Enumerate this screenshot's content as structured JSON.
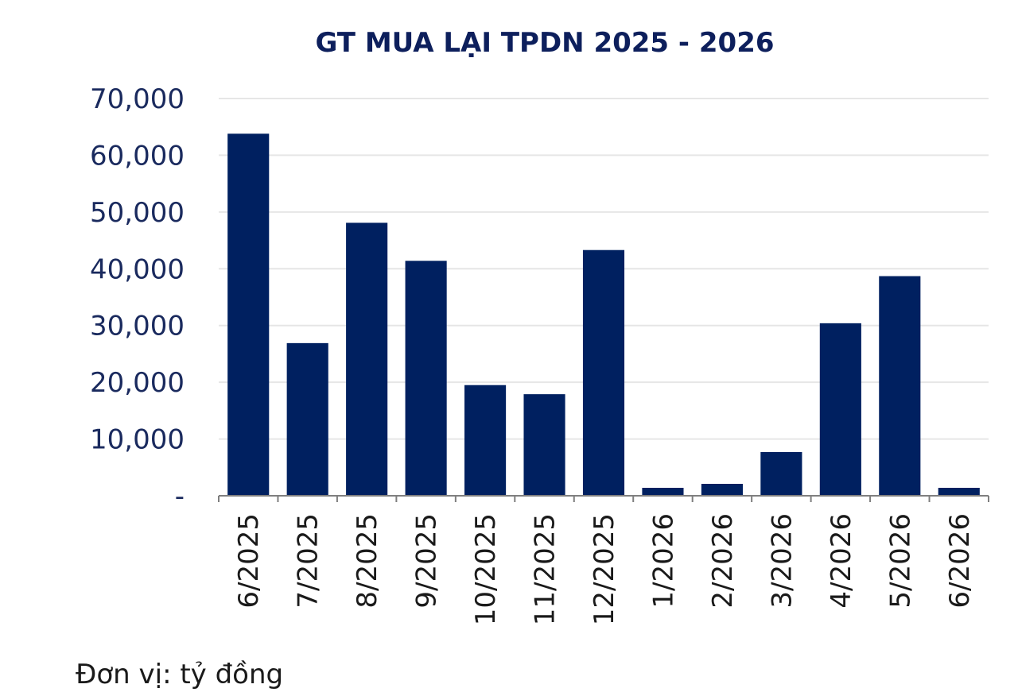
{
  "chart_data": {
    "type": "bar",
    "title": "GT MUA LẠI TPDN 2025 - 2026",
    "categories": [
      "6/2025",
      "7/2025",
      "8/2025",
      "9/2025",
      "10/2025",
      "11/2025",
      "12/2025",
      "1/2026",
      "2/2026",
      "3/2026",
      "4/2026",
      "5/2026",
      "6/2026"
    ],
    "values": [
      63800,
      26900,
      48100,
      41400,
      19500,
      17900,
      43300,
      1400,
      2100,
      7700,
      30400,
      38700,
      1400
    ],
    "ylim": [
      0,
      70000
    ],
    "yticks": [
      0,
      10000,
      20000,
      30000,
      40000,
      50000,
      60000,
      70000
    ],
    "ytick_labels": [
      "-",
      "10,000",
      "20,000",
      "30,000",
      "40,000",
      "50,000",
      "60,000",
      "70,000"
    ],
    "grid": true,
    "bar_color": "#002060",
    "note": "Đơn vị: tỷ đồng"
  }
}
